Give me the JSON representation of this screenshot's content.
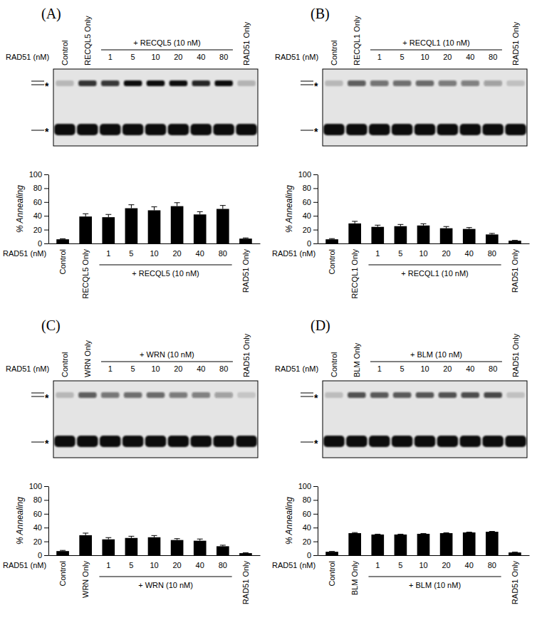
{
  "chart_data": [
    {
      "type": "bar",
      "title": "(A)",
      "xlabel": "RAD51 (nM)",
      "group_label": "+ RECQL5 (10 nM)",
      "ylabel": "% Annealing",
      "categories": [
        "Control",
        "RECQL5 Only",
        "1",
        "5",
        "10",
        "20",
        "40",
        "80",
        "RAD51 Only"
      ],
      "values": [
        6,
        39,
        38,
        51,
        48,
        54,
        42,
        50,
        7
      ],
      "errors": [
        0.8,
        4,
        4,
        5,
        5,
        5,
        4,
        5,
        1
      ],
      "color": "#000000",
      "ylim": [
        0,
        100
      ],
      "yticks": [
        0,
        20,
        40,
        60,
        80,
        100
      ],
      "gel_band_labels": [
        "*",
        "*"
      ]
    },
    {
      "type": "bar",
      "title": "(B)",
      "xlabel": "RAD51 (nM)",
      "group_label": "+ RECQL1 (10 nM)",
      "ylabel": "% Annealing",
      "categories": [
        "Control",
        "RECQL1 Only",
        "1",
        "5",
        "10",
        "20",
        "40",
        "80",
        "RAD51 Only"
      ],
      "values": [
        6,
        29,
        24,
        25,
        26,
        22,
        21,
        13,
        4
      ],
      "errors": [
        1,
        3,
        2.5,
        2.5,
        2.5,
        2.5,
        2,
        1.5,
        0.5
      ],
      "color": "#000000",
      "ylim": [
        0,
        100
      ],
      "yticks": [
        0,
        20,
        40,
        60,
        80,
        100
      ],
      "gel_band_labels": [
        "*",
        "*"
      ]
    },
    {
      "type": "bar",
      "title": "(C)",
      "xlabel": "RAD51 (nM)",
      "group_label": "+ WRN (10 nM)",
      "ylabel": "% Annealing",
      "categories": [
        "Control",
        "WRN Only",
        "1",
        "5",
        "10",
        "20",
        "40",
        "80",
        "RAD51 Only"
      ],
      "values": [
        6,
        29,
        23,
        25,
        26,
        22,
        21,
        13,
        3
      ],
      "errors": [
        1,
        3,
        2.5,
        2.5,
        2.5,
        2,
        2.5,
        1.5,
        0.5
      ],
      "color": "#000000",
      "ylim": [
        0,
        100
      ],
      "yticks": [
        0,
        20,
        40,
        60,
        80,
        100
      ],
      "gel_band_labels": [
        "*",
        "*"
      ]
    },
    {
      "type": "bar",
      "title": "(D)",
      "xlabel": "RAD51 (nM)",
      "group_label": "+ BLM (10 nM)",
      "ylabel": "% Annealing",
      "categories": [
        "Control",
        "BLM Only",
        "1",
        "5",
        "10",
        "20",
        "40",
        "80",
        "RAD51 Only"
      ],
      "values": [
        5,
        32,
        30,
        30,
        31,
        32,
        33,
        34,
        4
      ],
      "errors": [
        0.5,
        0.8,
        0.5,
        0.5,
        0.5,
        0.5,
        0.5,
        0.5,
        0.5
      ],
      "color": "#000000",
      "ylim": [
        0,
        100
      ],
      "yticks": [
        0,
        20,
        40,
        60,
        80,
        100
      ],
      "gel_band_labels": [
        "*",
        "*"
      ]
    }
  ]
}
